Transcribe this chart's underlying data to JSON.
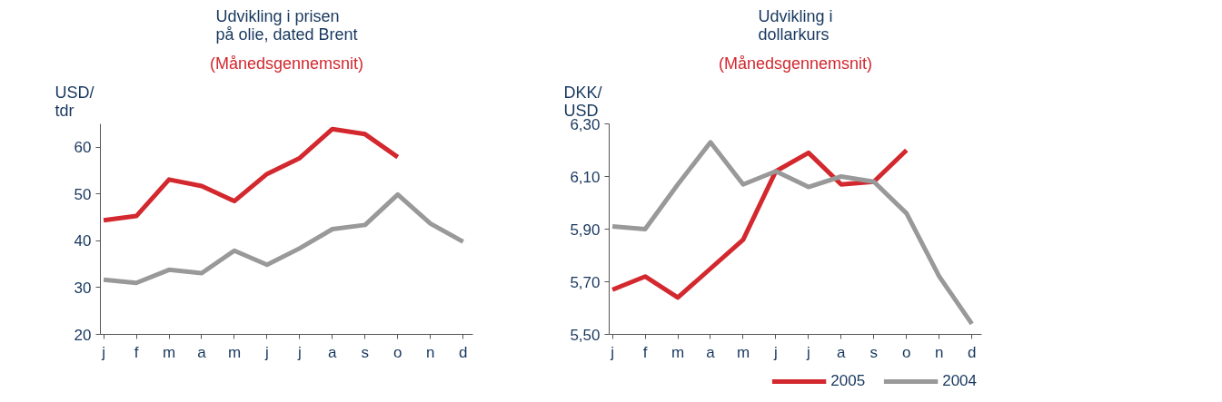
{
  "chart_data": [
    {
      "type": "line",
      "title": "Udvikling i prisen\npå olie, dated Brent",
      "subtitle": "(Månedsgennemsnit)",
      "ylabel": "USD/\ntdr",
      "categories": [
        "j",
        "f",
        "m",
        "a",
        "m",
        "j",
        "j",
        "a",
        "s",
        "o",
        "n",
        "d"
      ],
      "ylim": [
        20,
        65
      ],
      "yticks": [
        20,
        30,
        40,
        50,
        60
      ],
      "grid": false,
      "series": [
        {
          "color": "#d2282e",
          "values": [
            44.4,
            45.3,
            53.1,
            51.7,
            48.5,
            54.3,
            57.7,
            63.9,
            62.8,
            57.9,
            null,
            null
          ]
        },
        {
          "color": "#999999",
          "values": [
            31.7,
            31.0,
            33.8,
            33.1,
            37.9,
            34.9,
            38.4,
            42.5,
            43.4,
            49.9,
            43.7,
            39.8
          ]
        }
      ]
    },
    {
      "type": "line",
      "title": "Udvikling i\ndollarkurs",
      "subtitle": "(Månedsgennemsnit)",
      "ylabel": "DKK/\nUSD",
      "categories": [
        "j",
        "f",
        "m",
        "a",
        "m",
        "j",
        "j",
        "a",
        "s",
        "o",
        "n",
        "d"
      ],
      "ylim": [
        5.5,
        6.3
      ],
      "yticks": [
        {
          "value": 5.5,
          "label": "5,50"
        },
        {
          "value": 5.7,
          "label": "5,70"
        },
        {
          "value": 5.9,
          "label": "5,90"
        },
        {
          "value": 6.1,
          "label": "6,10"
        },
        {
          "value": 6.3,
          "label": "6,30"
        }
      ],
      "grid": false,
      "legend": "bottom right",
      "series": [
        {
          "name": "2005",
          "color": "#d2282e",
          "values": [
            5.67,
            5.72,
            5.64,
            5.75,
            5.86,
            6.12,
            6.19,
            6.07,
            6.08,
            6.2,
            null,
            null
          ]
        },
        {
          "name": "2004",
          "color": "#999999",
          "values": [
            5.91,
            5.9,
            6.07,
            6.23,
            6.07,
            6.12,
            6.06,
            6.1,
            6.08,
            5.96,
            5.72,
            5.54
          ]
        }
      ]
    }
  ]
}
